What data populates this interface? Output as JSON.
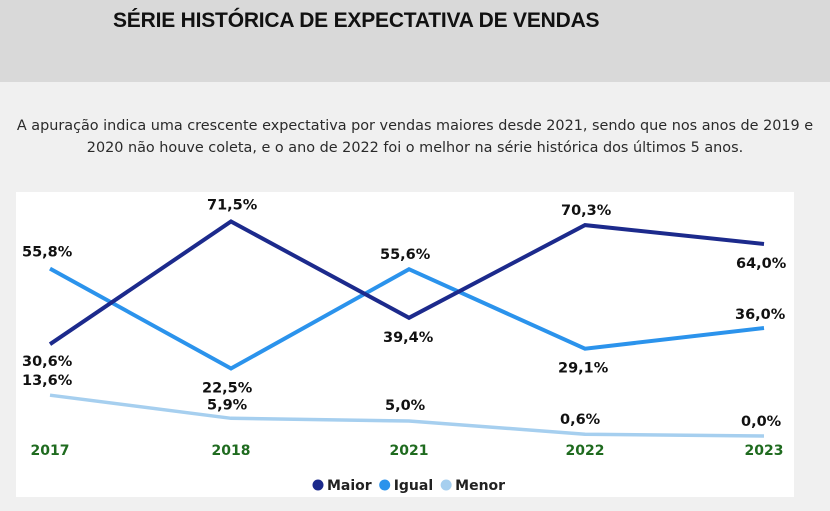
{
  "title": "SÉRIE HISTÓRICA DE EXPECTATIVA DE VENDAS",
  "description_line1": "A apuração indica uma crescente expectativa por vendas maiores desde 2021, sendo que nos anos de 2019 e",
  "description_line2": "2020 não houve coleta, e o ano de 2022 foi o melhor na série histórica dos últimos 5 anos.",
  "chart_data": {
    "type": "line",
    "categories": [
      "2017",
      "2018",
      "2021",
      "2022",
      "2023"
    ],
    "series": [
      {
        "name": "Maior",
        "color": "#1c2a8c",
        "values": [
          30.6,
          71.5,
          39.4,
          70.3,
          64.0
        ],
        "labels": [
          "30,6%",
          "71,5%",
          "39,4%",
          "70,3%",
          "64,0%"
        ]
      },
      {
        "name": "Igual",
        "color": "#2b93ec",
        "values": [
          55.8,
          22.5,
          55.6,
          29.1,
          36.0
        ],
        "labels": [
          "55,8%",
          "22,5%",
          "55,6%",
          "29,1%",
          "36,0%"
        ]
      },
      {
        "name": "Menor",
        "color": "#a6cfef",
        "values": [
          13.6,
          5.9,
          5.0,
          0.6,
          0.0
        ],
        "labels": [
          "13,6%",
          "5,9%",
          "5,0%",
          "0,6%",
          "0,0%"
        ]
      }
    ],
    "legend_position": "bottom-center",
    "grid": false,
    "tick_color": "#1f6b1f"
  }
}
